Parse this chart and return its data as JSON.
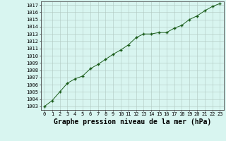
{
  "x": [
    0,
    1,
    2,
    3,
    4,
    5,
    6,
    7,
    8,
    9,
    10,
    11,
    12,
    13,
    14,
    15,
    16,
    17,
    18,
    19,
    20,
    21,
    22,
    23
  ],
  "y": [
    1003.0,
    1003.8,
    1005.0,
    1006.2,
    1006.8,
    1007.2,
    1008.2,
    1008.8,
    1009.5,
    1010.2,
    1010.8,
    1011.5,
    1012.5,
    1013.0,
    1013.0,
    1013.2,
    1013.2,
    1013.8,
    1014.2,
    1015.0,
    1015.5,
    1016.2,
    1016.8,
    1017.2
  ],
  "line_color": "#1a5c1a",
  "marker": "+",
  "marker_size": 3,
  "marker_edge_width": 1.0,
  "line_width": 0.7,
  "bg_color": "#d8f5f0",
  "grid_color": "#b0c8c0",
  "xlabel": "Graphe pression niveau de la mer (hPa)",
  "xlabel_fontsize": 7,
  "ylabel_min": 1003,
  "ylabel_max": 1017,
  "xlim": [
    -0.5,
    23.5
  ],
  "ylim": [
    1002.5,
    1017.5
  ],
  "tick_fontsize": 5,
  "xlabel_fontweight": "bold",
  "xlabel_family": "monospace"
}
